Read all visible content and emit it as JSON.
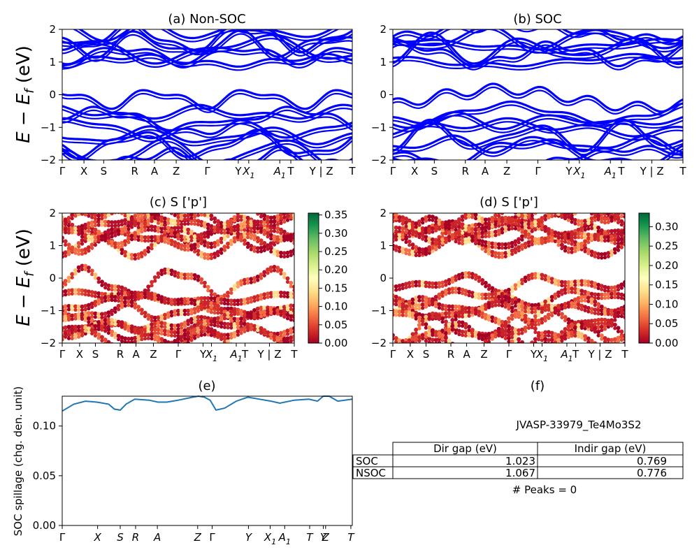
{
  "panel_titles": {
    "a": "(a) Non-SOC",
    "b": "(b) SOC",
    "c": "(c)  S ['p']",
    "d": "(d) S ['p']",
    "e": "(e)",
    "f": "(f)"
  },
  "band_ylabel": "E − E_f (eV)",
  "band_ylabel_parts": {
    "main": "E − E",
    "sub": "f",
    "unit": " (eV)"
  },
  "band_yticks": [
    "2",
    "1",
    "0",
    "−1",
    "−2"
  ],
  "band_kpath": [
    {
      "label": "Γ",
      "x": 0.0
    },
    {
      "label": "X",
      "x": 0.075
    },
    {
      "label": "S",
      "x": 0.143
    },
    {
      "label": "R",
      "x": 0.25
    },
    {
      "label": "A",
      "x": 0.318
    },
    {
      "label": "Z",
      "x": 0.393
    },
    {
      "label": "Γ",
      "x": 0.5
    },
    {
      "label": "Y",
      "x": 0.607
    },
    {
      "label": "X",
      "sub": "1",
      "x": 0.643
    },
    {
      "label": "A",
      "sub": "1",
      "x": 0.75
    },
    {
      "label": "T",
      "x": 0.788
    },
    {
      "label": "Y | Z",
      "x": 0.893
    },
    {
      "label": "T",
      "x": 1.0
    }
  ],
  "colorbars": {
    "c": {
      "ticks": [
        "0.35",
        "0.30",
        "0.25",
        "0.20",
        "0.15",
        "0.10",
        "0.05",
        "0.00"
      ],
      "max": 0.355
    },
    "d": {
      "ticks": [
        "0.30",
        "0.25",
        "0.20",
        "0.15",
        "0.10",
        "0.05",
        "0.00"
      ],
      "max": 0.335
    }
  },
  "spillage": {
    "ylabel": "SOC spillage (chg. den. unit)",
    "yticks": [
      "0.10",
      "0.05",
      "0.00"
    ],
    "xticks": [
      {
        "label": "Γ",
        "x": 0.0
      },
      {
        "label": "X",
        "x": 0.122
      },
      {
        "label": "S",
        "x": 0.2
      },
      {
        "label": "R",
        "x": 0.253
      },
      {
        "label": "A",
        "x": 0.328
      },
      {
        "label": "Z",
        "x": 0.467
      },
      {
        "label": "Γ",
        "x": 0.517
      },
      {
        "label": "Y",
        "x": 0.642
      },
      {
        "label": "X",
        "sub": "1",
        "x": 0.717
      },
      {
        "label": "A",
        "sub": "1",
        "x": 0.767
      },
      {
        "label": "T",
        "x": 0.853
      },
      {
        "label": "Y",
        "x": 0.9
      },
      {
        "label": "Z",
        "x": 0.908
      },
      {
        "label": "T",
        "x": 0.995
      }
    ]
  },
  "info": {
    "material": "JVASP-33979_Te4Mo3S2",
    "table": {
      "col_headers": [
        "Dir gap (eV)",
        "Indir gap (eV)"
      ],
      "rows": [
        {
          "label": "SOC",
          "dir": "1.023",
          "indir": "0.769"
        },
        {
          "label": "NSOC",
          "dir": "1.067",
          "indir": "0.776"
        }
      ]
    },
    "peaks": "# Peaks = 0"
  },
  "colors": {
    "band_line": "#0000ff",
    "spillage_line": "#1f77b4"
  },
  "chart_data": [
    {
      "type": "line",
      "title": "(a) Non-SOC",
      "ylabel": "E − E_f (eV)",
      "ylim": [
        -2,
        2
      ],
      "x_tick_labels": [
        "Γ",
        "X",
        "S",
        "R",
        "A",
        "Z",
        "Γ",
        "Y",
        "X1",
        "A1",
        "T",
        "Y | Z",
        "T"
      ],
      "series": [
        {
          "values": []
        }
      ]
    },
    {
      "type": "line",
      "title": "(b) SOC",
      "ylim": [
        -2,
        2
      ],
      "x_tick_labels": [
        "Γ",
        "X",
        "S",
        "R",
        "A",
        "Z",
        "Γ",
        "Y",
        "X1",
        "A1",
        "T",
        "Y | Z",
        "T"
      ],
      "series": [
        {
          "values": []
        }
      ]
    },
    {
      "type": "scatter",
      "title": "(c)  S ['p']",
      "ylabel": "E − E_f (eV)",
      "ylim": [
        -2,
        2
      ],
      "colorbar_range": [
        0.0,
        0.355
      ],
      "x_tick_labels": [
        "Γ",
        "X",
        "S",
        "R",
        "A",
        "Z",
        "Γ",
        "Y",
        "X1",
        "A1",
        "T",
        "Y | Z",
        "T"
      ],
      "series": [
        {
          "values": []
        }
      ]
    },
    {
      "type": "scatter",
      "title": "(d) S ['p']",
      "ylim": [
        -2,
        2
      ],
      "colorbar_range": [
        0.0,
        0.335
      ],
      "x_tick_labels": [
        "Γ",
        "X",
        "S",
        "R",
        "A",
        "Z",
        "Γ",
        "Y",
        "X1",
        "A1",
        "T",
        "Y | Z",
        "T"
      ],
      "series": [
        {
          "values": []
        }
      ]
    },
    {
      "type": "line",
      "title": "(e)",
      "ylabel": "SOC spillage (chg. den. unit)",
      "ylim": [
        0.0,
        0.13
      ],
      "x": [
        0.0,
        0.04,
        0.08,
        0.12,
        0.16,
        0.18,
        0.2,
        0.22,
        0.25,
        0.3,
        0.33,
        0.36,
        0.4,
        0.45,
        0.47,
        0.49,
        0.51,
        0.53,
        0.56,
        0.6,
        0.64,
        0.68,
        0.72,
        0.75,
        0.8,
        0.85,
        0.88,
        0.9,
        0.92,
        0.95,
        1.0
      ],
      "series": [
        {
          "values": [
            0.115,
            0.122,
            0.125,
            0.124,
            0.122,
            0.117,
            0.116,
            0.122,
            0.127,
            0.126,
            0.124,
            0.124,
            0.126,
            0.129,
            0.13,
            0.129,
            0.126,
            0.116,
            0.118,
            0.125,
            0.129,
            0.127,
            0.125,
            0.123,
            0.126,
            0.127,
            0.125,
            0.13,
            0.13,
            0.125,
            0.127
          ]
        }
      ]
    }
  ]
}
